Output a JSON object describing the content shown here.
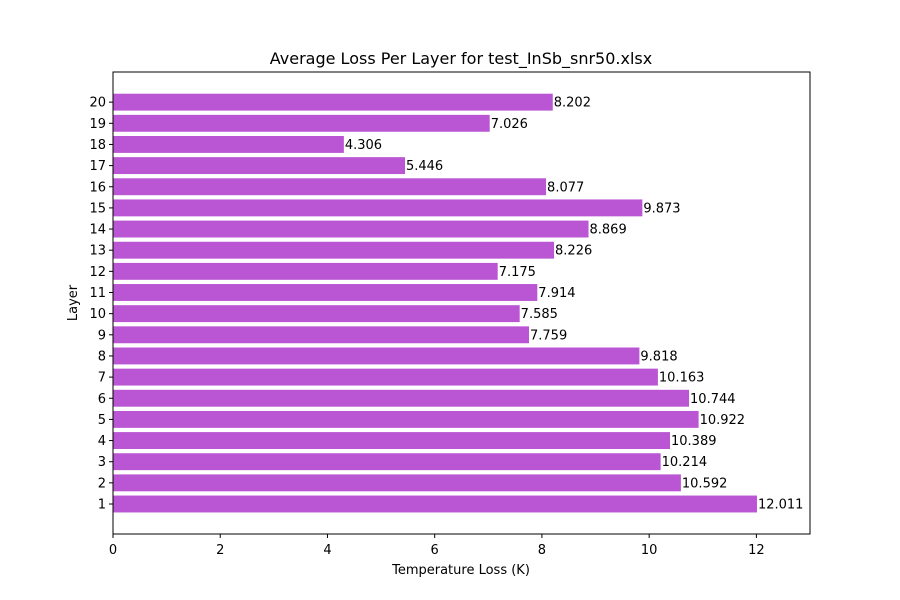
{
  "chart_data": {
    "type": "bar",
    "orientation": "horizontal",
    "title": "Average Loss Per Layer for test_InSb_snr50.xlsx",
    "xlabel": "Temperature Loss (K)",
    "ylabel": "Layer",
    "categories": [
      "1",
      "2",
      "3",
      "4",
      "5",
      "6",
      "7",
      "8",
      "9",
      "10",
      "11",
      "12",
      "13",
      "14",
      "15",
      "16",
      "17",
      "18",
      "19",
      "20"
    ],
    "values": [
      12.011,
      10.592,
      10.214,
      10.389,
      10.922,
      10.744,
      10.163,
      9.818,
      7.759,
      7.585,
      7.914,
      7.175,
      8.226,
      8.869,
      9.873,
      8.077,
      5.446,
      4.306,
      7.026,
      8.202
    ],
    "value_labels": [
      "12.011",
      "10.592",
      "10.214",
      "10.389",
      "10.922",
      "10.744",
      "10.163",
      "9.818",
      "7.759",
      "7.585",
      "7.914",
      "7.175",
      "8.226",
      "8.869",
      "9.873",
      "8.077",
      "5.446",
      "4.306",
      "7.026",
      "8.202"
    ],
    "xlim": [
      0,
      13
    ],
    "xticks": [
      0,
      2,
      4,
      6,
      8,
      10,
      12
    ],
    "xtick_labels": [
      "0",
      "2",
      "4",
      "6",
      "8",
      "10",
      "12"
    ],
    "bar_color": "#ba55d3",
    "grid": false,
    "legend": false
  }
}
